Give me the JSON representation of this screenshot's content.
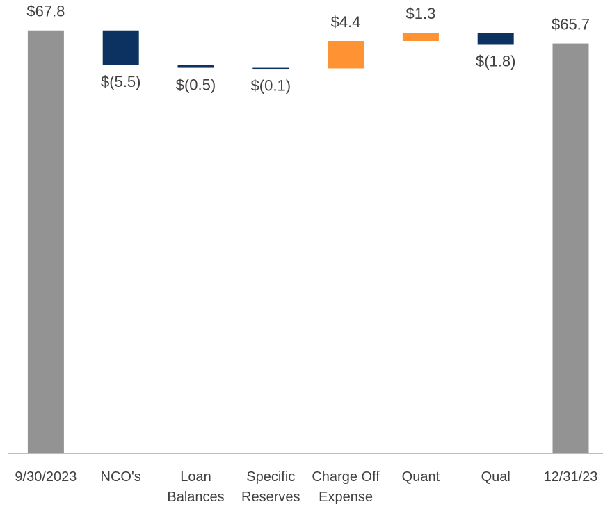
{
  "chart_data": {
    "type": "waterfall",
    "categories": [
      "9/30/2023",
      "NCO's",
      "Loan Balances",
      "Specific Reserves",
      "Charge Off Expense",
      "Quant",
      "Qual",
      "12/31/23"
    ],
    "values": [
      67.8,
      -5.5,
      -0.5,
      -0.1,
      4.4,
      1.3,
      -1.8,
      65.7
    ],
    "value_labels": [
      "$67.8",
      "$(5.5)",
      "$(0.5)",
      "$(0.1)",
      "$4.4",
      "$1.3",
      "$(1.8)",
      "$65.7"
    ],
    "measures": [
      "total",
      "relative",
      "relative",
      "relative",
      "relative",
      "relative",
      "relative",
      "total"
    ],
    "colors": {
      "total": "#939393",
      "increase": "#ff9233",
      "decrease": "#0b3260"
    },
    "ylim": [
      0,
      70
    ]
  }
}
